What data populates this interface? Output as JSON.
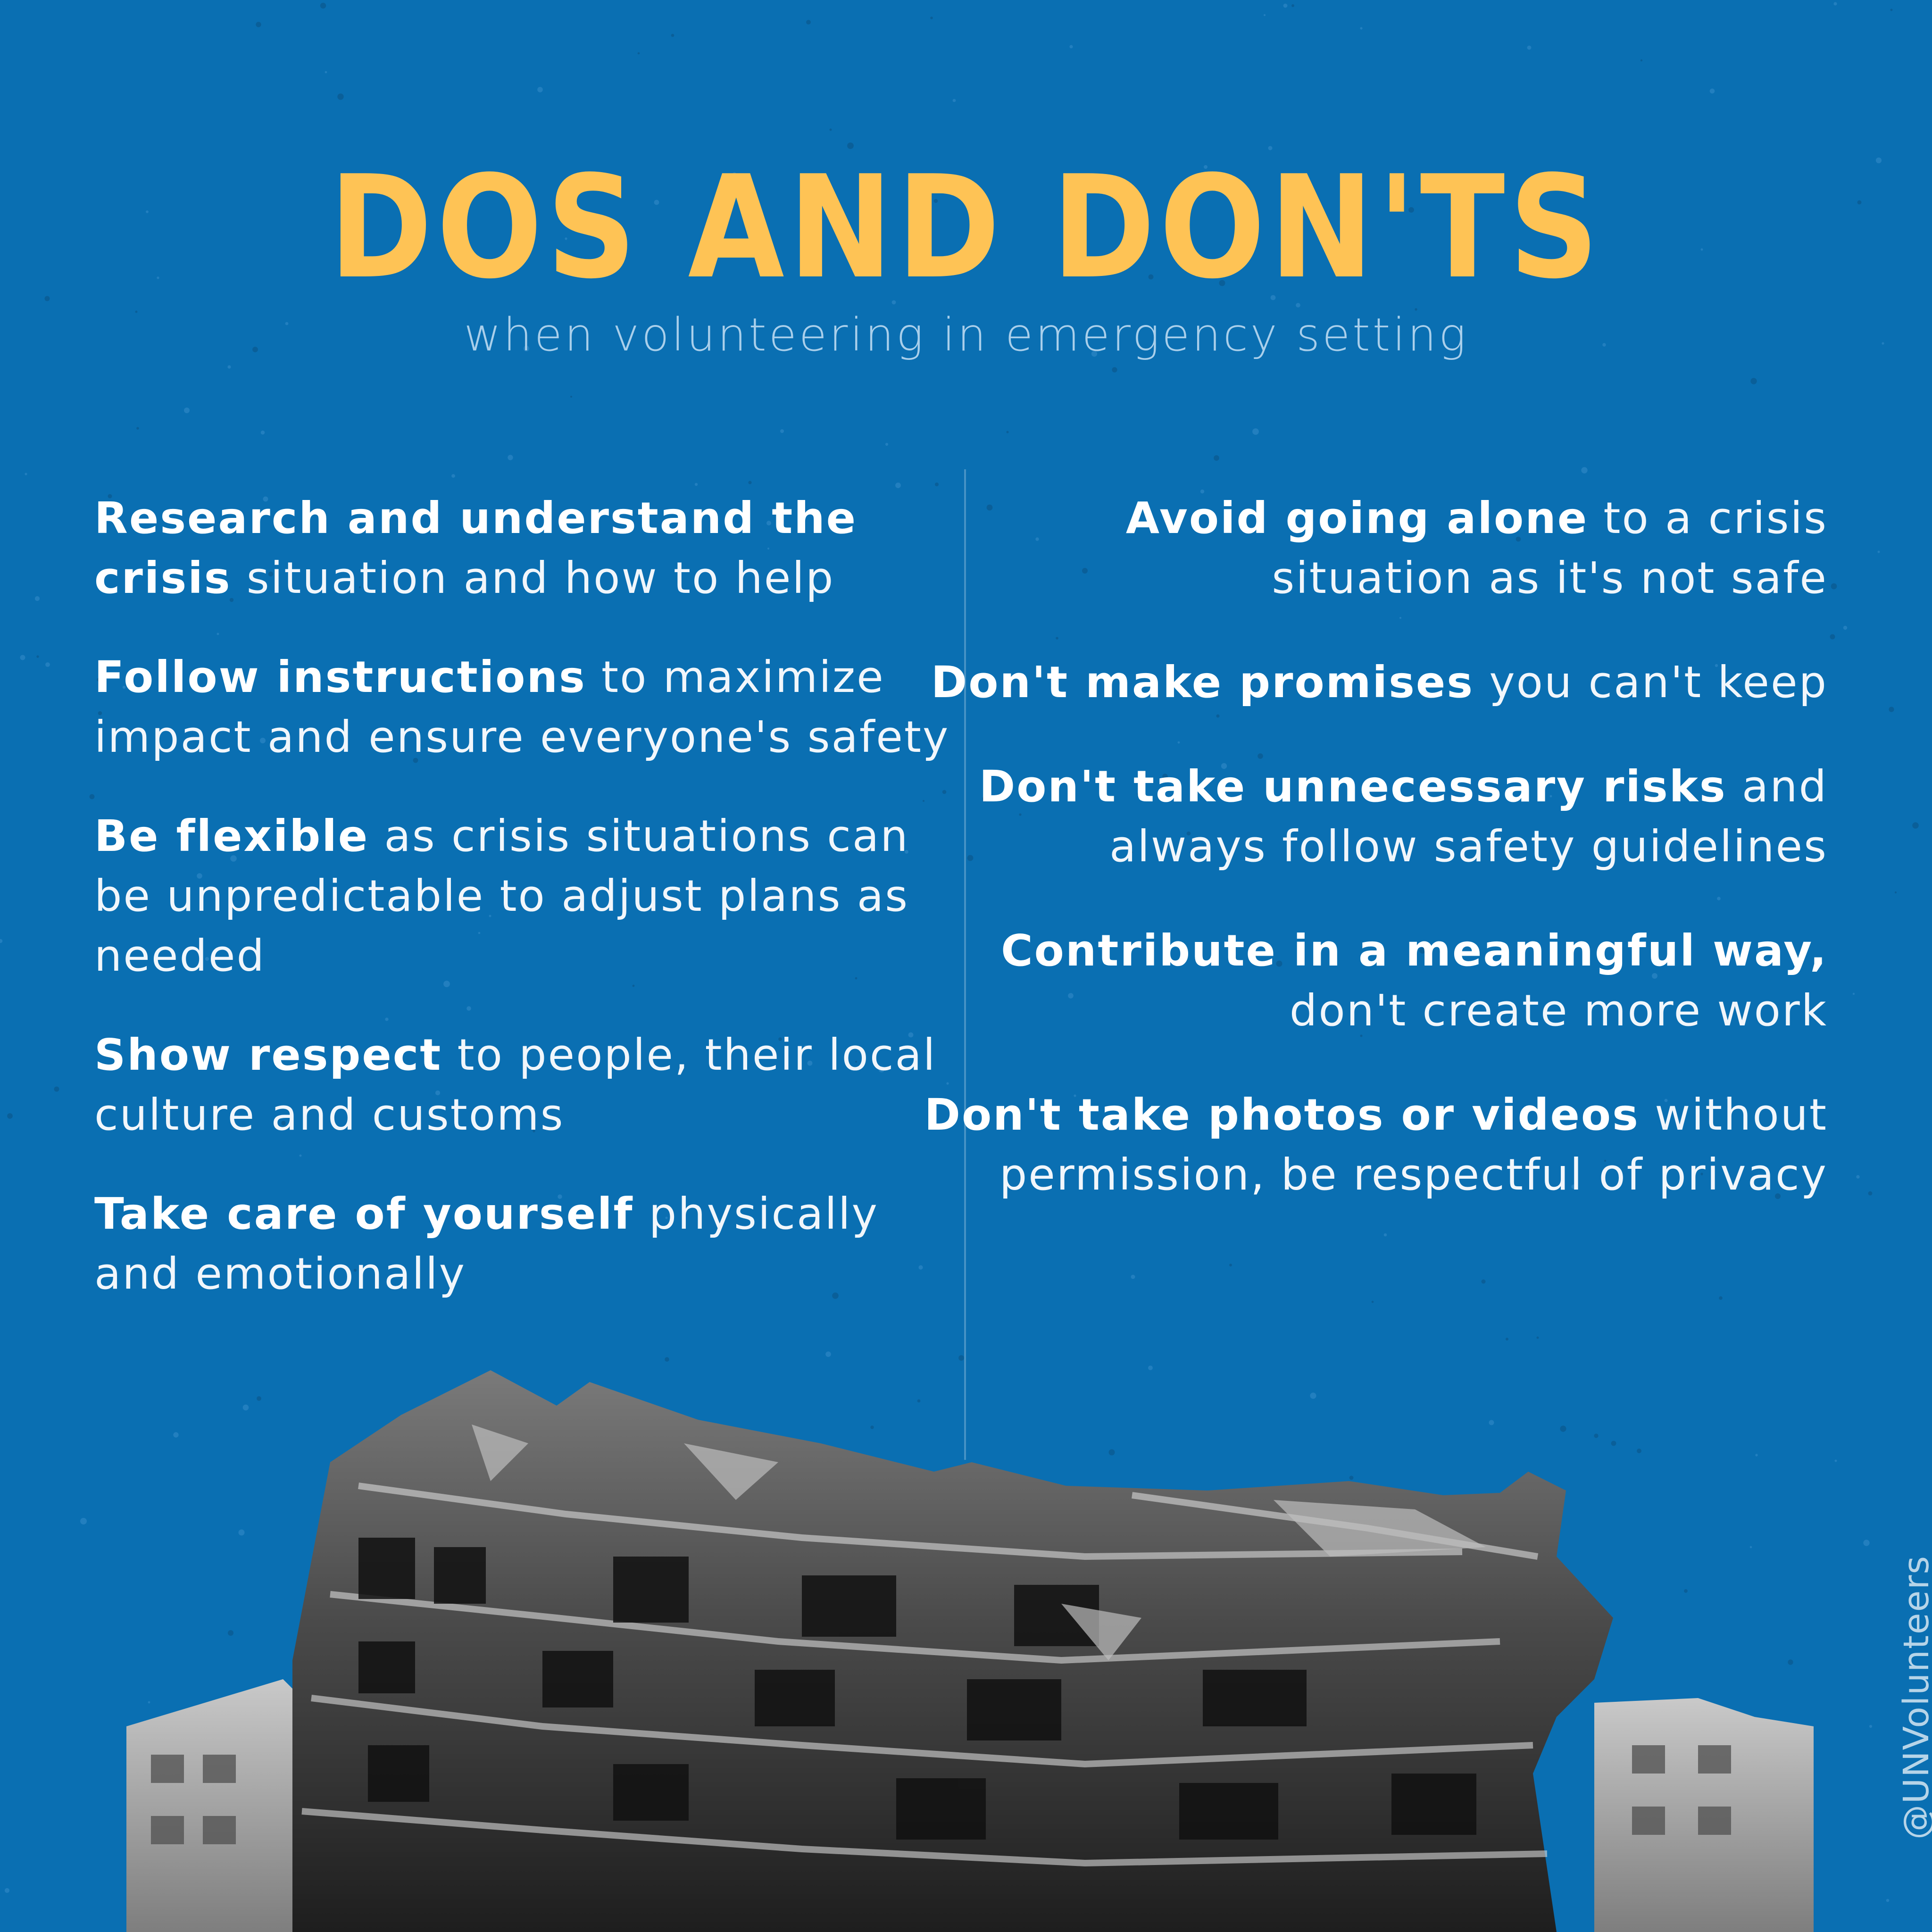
{
  "colors": {
    "background": "#0a6fb2",
    "title": "#fec355",
    "text": "#ffffff"
  },
  "header": {
    "title": "DOS AND DON'TS",
    "subtitle": "when volunteering in emergency setting"
  },
  "dos": [
    {
      "bold": "Research and understand the crisis",
      "rest": " situation and how to help"
    },
    {
      "bold": "Follow instructions",
      "rest": " to maximize impact and ensure everyone's safety"
    },
    {
      "bold": "Be flexible",
      "rest": " as crisis situations can be unpredictable to adjust plans as needed"
    },
    {
      "bold": "Show respect",
      "rest": " to people, their local culture and customs"
    },
    {
      "bold": "Take care of yourself",
      "rest": " physically and emotionally"
    }
  ],
  "donts": [
    {
      "bold": "Avoid going alone",
      "rest": " to a crisis situation as it's not safe"
    },
    {
      "bold": "Don't make promises",
      "rest": " you can't keep"
    },
    {
      "bold": "Don't take unnecessary risks",
      "rest": " and always follow safety guidelines"
    },
    {
      "bold": "Contribute in a meaningful way,",
      "rest": " don't create more work"
    },
    {
      "bold": "Don't take photos or videos",
      "rest": " without permission, be respectful of privacy"
    }
  ],
  "illustration": {
    "icon": "collapsed-building-photo"
  },
  "footer": {
    "handle": "@UNVolunteers"
  }
}
